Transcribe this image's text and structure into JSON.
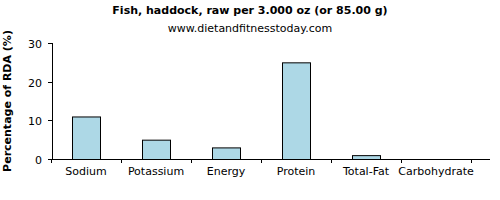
{
  "chart_data": {
    "type": "bar",
    "title": "Fish, haddock, raw per 3.000 oz (or 85.00 g)",
    "subtitle": "www.dietandfitnesstoday.com",
    "ylabel": "Percentage of RDA (%)",
    "categories": [
      "Sodium",
      "Potassium",
      "Energy",
      "Protein",
      "Total-Fat",
      "Carbohydrate"
    ],
    "values": [
      11,
      5,
      3,
      25,
      1,
      0
    ],
    "color": "#add8e6",
    "ylim": [
      0,
      30
    ],
    "yticks": [
      0,
      10,
      20,
      30
    ],
    "grid": false
  }
}
